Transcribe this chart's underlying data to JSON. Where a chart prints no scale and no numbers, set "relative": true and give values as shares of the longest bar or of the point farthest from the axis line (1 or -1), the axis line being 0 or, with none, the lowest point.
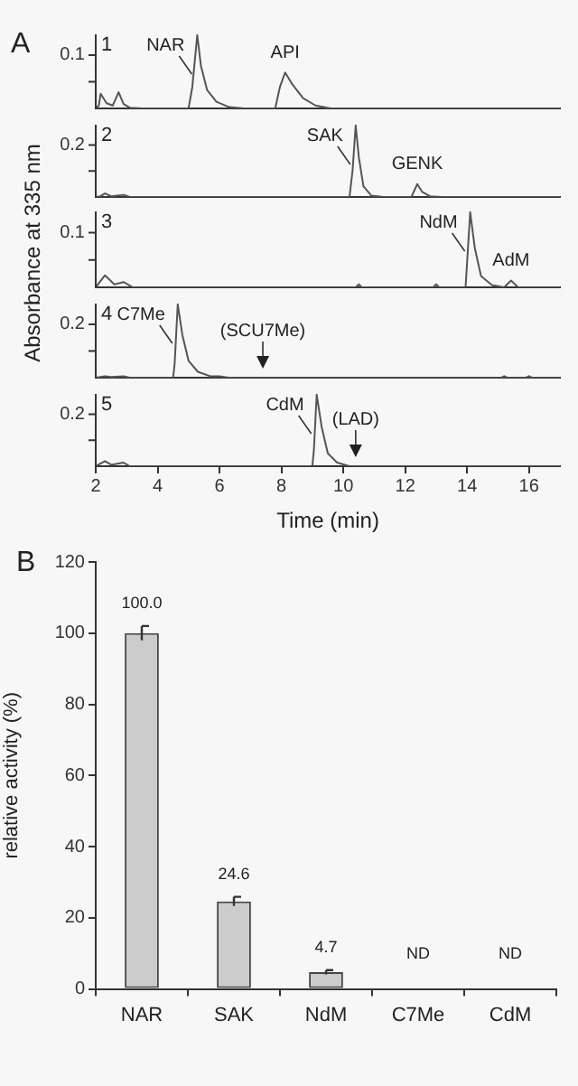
{
  "chart_data": [
    {
      "type": "line",
      "title": "A",
      "subtitle": "1",
      "relative": true,
      "xlim": [
        2,
        17
      ],
      "xticks": [
        2,
        4,
        6,
        8,
        10,
        12,
        14,
        16
      ],
      "tick_labels": "y",
      "grid": false,
      "series": [
        {
          "color": "#555555",
          "x": [
            2.0,
            2.1,
            2.16,
            2.35,
            2.55,
            2.74,
            2.9,
            3.1,
            3.5,
            5.0,
            5.12,
            5.28,
            5.4,
            5.6,
            5.9,
            6.3,
            6.8,
            7.8,
            7.95,
            8.12,
            8.35,
            8.7,
            9.1,
            9.6,
            17
          ],
          "values": [
            0,
            0.04,
            0.2,
            0.07,
            0.04,
            0.22,
            0.06,
            0.01,
            0,
            0,
            0.29,
            1,
            0.58,
            0.25,
            0.09,
            0.02,
            0,
            0,
            0.29,
            0.49,
            0.33,
            0.14,
            0.04,
            0,
            0
          ]
        }
      ],
      "annotations": [
        "0.1",
        {
          "text": "NAR",
          "x": 5.28,
          "y": 1
        },
        {
          "text": "API",
          "x": 8.12,
          "y": 0.49
        }
      ]
    },
    {
      "type": "line",
      "subtitle": "2",
      "relative": true,
      "xlim": [
        2,
        17
      ],
      "xticks": [
        2,
        4,
        6,
        8,
        10,
        12,
        14,
        16
      ],
      "tick_labels": "y",
      "grid": false,
      "series": [
        {
          "color": "#555555",
          "x": [
            2.0,
            2.15,
            2.3,
            2.5,
            2.9,
            3.1,
            10.2,
            10.3,
            10.4,
            10.5,
            10.65,
            10.9,
            11.3,
            12.2,
            12.39,
            12.55,
            12.8,
            13.2,
            17
          ],
          "values": [
            0,
            0.01,
            0.05,
            0.01,
            0.03,
            0,
            0,
            0.37,
            1,
            0.56,
            0.15,
            0.02,
            0,
            0,
            0.18,
            0.07,
            0.01,
            0,
            0
          ]
        }
      ],
      "annotations": [
        "0.2",
        {
          "text": "SAK",
          "x": 10.4,
          "y": 1
        },
        {
          "text": "GENK",
          "x": 12.39,
          "y": 0.18
        }
      ]
    },
    {
      "type": "line",
      "subtitle": "3",
      "relative": true,
      "ylabel": "Absorbance at 335 nm",
      "xlim": [
        2,
        17
      ],
      "xticks": [
        2,
        4,
        6,
        8,
        10,
        12,
        14,
        16
      ],
      "tick_labels": "y",
      "grid": false,
      "series": [
        {
          "color": "#555555",
          "x": [
            2.0,
            2.3,
            2.6,
            2.9,
            3.2,
            10.4,
            10.5,
            10.6,
            12.9,
            13.0,
            13.1,
            13.95,
            14.1,
            14.25,
            14.45,
            14.8,
            15.2,
            15.42,
            15.65,
            17
          ],
          "values": [
            0,
            0.16,
            0.04,
            0.07,
            0,
            0,
            0.04,
            0,
            0,
            0.04,
            0,
            0,
            1,
            0.52,
            0.15,
            0.03,
            0,
            0.09,
            0,
            0
          ]
        }
      ],
      "annotations": [
        "0.1",
        {
          "text": "NdM",
          "x": 14.1,
          "y": 1
        },
        {
          "text": "AdM",
          "x": 15.42,
          "y": 0.09
        }
      ]
    },
    {
      "type": "line",
      "subtitle": "4",
      "relative": true,
      "xlim": [
        2,
        17
      ],
      "xticks": [
        2,
        4,
        6,
        8,
        10,
        12,
        14,
        16
      ],
      "tick_labels": "y",
      "grid": false,
      "series": [
        {
          "color": "#555555",
          "x": [
            2.0,
            2.3,
            2.5,
            2.9,
            3.1,
            4.5,
            4.55,
            4.65,
            4.8,
            5.0,
            5.3,
            5.7,
            6.0,
            6.3,
            15.1,
            15.2,
            15.3,
            15.9,
            16.0,
            16.1,
            17
          ],
          "values": [
            0,
            0.02,
            0.01,
            0.02,
            0,
            0,
            0.19,
            1,
            0.58,
            0.23,
            0.08,
            0.02,
            0.02,
            0,
            0,
            0.02,
            0,
            0,
            0.02,
            0,
            0
          ]
        }
      ],
      "annotations": [
        "0.2",
        {
          "text": "C7Me",
          "x": 4.65,
          "y": 1
        },
        {
          "text": "(SCU7Me)",
          "x": 7.4,
          "y": 0
        }
      ]
    },
    {
      "type": "line",
      "subtitle": "5",
      "relative": true,
      "xlabel": "Time (min)",
      "xlim": [
        2,
        17
      ],
      "xticks": [
        2,
        4,
        6,
        8,
        10,
        12,
        14,
        16
      ],
      "grid": false,
      "series": [
        {
          "color": "#555555",
          "x": [
            2.0,
            2.3,
            2.5,
            2.9,
            3.1,
            9.0,
            9.05,
            9.14,
            9.3,
            9.5,
            9.8,
            10.2,
            17
          ],
          "values": [
            0,
            0.07,
            0.02,
            0.05,
            0,
            0,
            0.23,
            1,
            0.55,
            0.18,
            0.05,
            0,
            0
          ]
        }
      ],
      "annotations": [
        "0.2",
        {
          "text": "CdM",
          "x": 9.14,
          "y": 1
        },
        {
          "text": "(LAD)",
          "x": 10.4,
          "y": 0
        }
      ]
    },
    {
      "type": "bar",
      "title": "B",
      "ylabel": "relative activity (%)",
      "categories": [
        "NAR",
        "SAK",
        "NdM",
        "C7Me",
        "CdM"
      ],
      "values": [
        100.0,
        24.6,
        4.7,
        0,
        0
      ],
      "errors": [
        2.0,
        1.3,
        0.6,
        null,
        null
      ],
      "value_labels": [
        "100.0",
        "24.6",
        "4.7",
        "ND",
        "ND"
      ],
      "color": "#cccccc",
      "ylim": [
        0,
        120
      ],
      "yticks": [
        0,
        20,
        40,
        60,
        80,
        100,
        120
      ],
      "grid": false
    }
  ]
}
